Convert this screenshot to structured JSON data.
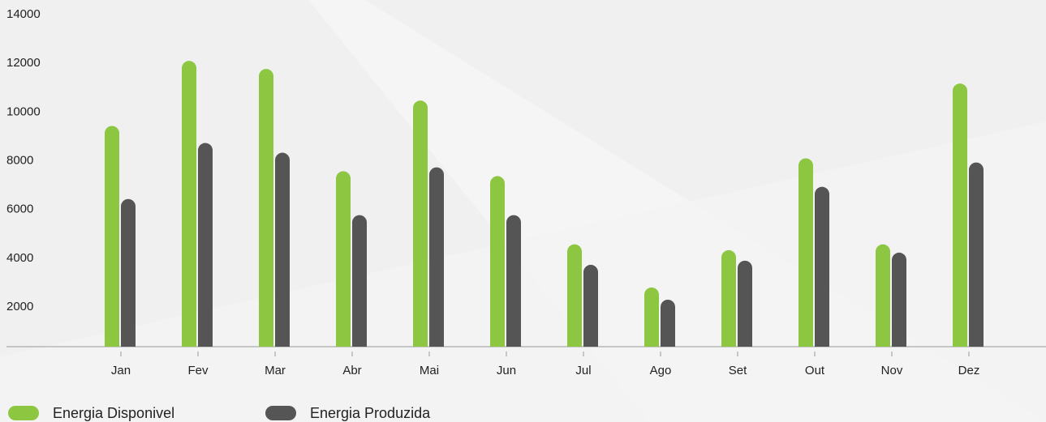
{
  "chart_data": {
    "type": "bar",
    "categories": [
      "Jan",
      "Fev",
      "Mar",
      "Abr",
      "Mai",
      "Jun",
      "Jul",
      "Ago",
      "Set",
      "Out",
      "Nov",
      "Dez"
    ],
    "series": [
      {
        "name": "Energia Disponivel",
        "color": "#8dc641",
        "values": [
          9430,
          12100,
          11770,
          7570,
          10470,
          7370,
          4570,
          2800,
          4330,
          8100,
          4570,
          11170
        ]
      },
      {
        "name": "Energia Produzida",
        "color": "#555555",
        "values": [
          6430,
          8730,
          8330,
          5770,
          7730,
          5770,
          3730,
          2300,
          3900,
          6930,
          4230,
          7930
        ]
      }
    ],
    "ylim": [
      370,
      14000
    ],
    "yticks": [
      2000,
      4000,
      6000,
      8000,
      10000,
      12000,
      14000
    ]
  }
}
